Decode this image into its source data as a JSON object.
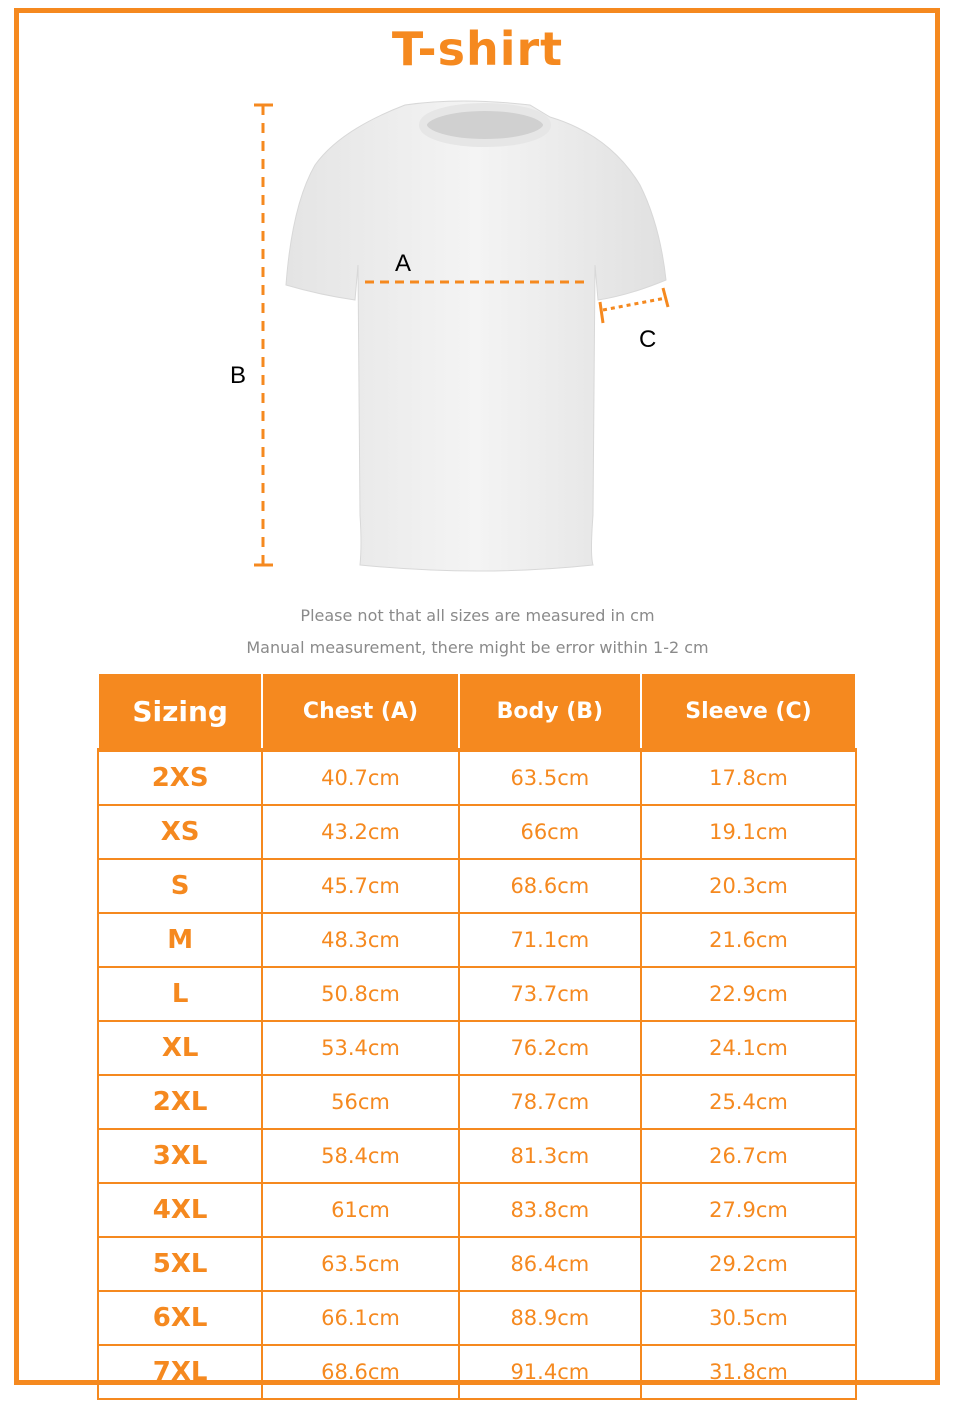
{
  "title": "T-shirt",
  "diagram": {
    "label_a": "A",
    "label_b": "B",
    "label_c": "C"
  },
  "notes": [
    "Please not that all sizes are measured in cm",
    "Manual measurement, there might be error within 1-2 cm"
  ],
  "colors": {
    "accent": "#f5891f",
    "note_text": "#8a8a8a"
  },
  "table": {
    "headers": [
      "Sizing",
      "Chest (A)",
      "Body (B)",
      "Sleeve (C)"
    ],
    "rows": [
      [
        "2XS",
        "40.7cm",
        "63.5cm",
        "17.8cm"
      ],
      [
        "XS",
        "43.2cm",
        "66cm",
        "19.1cm"
      ],
      [
        "S",
        "45.7cm",
        "68.6cm",
        "20.3cm"
      ],
      [
        "M",
        "48.3cm",
        "71.1cm",
        "21.6cm"
      ],
      [
        "L",
        "50.8cm",
        "73.7cm",
        "22.9cm"
      ],
      [
        "XL",
        "53.4cm",
        "76.2cm",
        "24.1cm"
      ],
      [
        "2XL",
        "56cm",
        "78.7cm",
        "25.4cm"
      ],
      [
        "3XL",
        "58.4cm",
        "81.3cm",
        "26.7cm"
      ],
      [
        "4XL",
        "61cm",
        "83.8cm",
        "27.9cm"
      ],
      [
        "5XL",
        "63.5cm",
        "86.4cm",
        "29.2cm"
      ],
      [
        "6XL",
        "66.1cm",
        "88.9cm",
        "30.5cm"
      ],
      [
        "7XL",
        "68.6cm",
        "91.4cm",
        "31.8cm"
      ]
    ]
  }
}
